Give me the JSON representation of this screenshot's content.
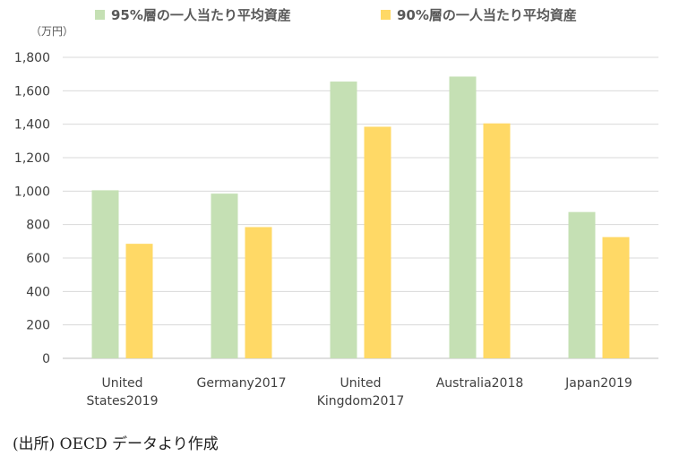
{
  "chart_data": {
    "type": "bar",
    "unit_label": "（万円）",
    "categories": [
      [
        "United",
        "States2019"
      ],
      [
        "Germany2017"
      ],
      [
        "United",
        "Kingdom2017"
      ],
      [
        "Australia2018"
      ],
      [
        "Japan2019"
      ]
    ],
    "series": [
      {
        "name": "95%層の一人当たり平均資産",
        "color": "#c5e0b4",
        "values": [
          1005,
          985,
          1655,
          1685,
          875
        ]
      },
      {
        "name": "90%層の一人当たり平均資産",
        "color": "#ffd966",
        "values": [
          685,
          785,
          1385,
          1405,
          725
        ]
      }
    ],
    "ylim": [
      0,
      1800
    ],
    "yticks": [
      "0",
      "200",
      "400",
      "600",
      "800",
      "1,000",
      "1,200",
      "1,400",
      "1,600",
      "1,800"
    ],
    "grid": true,
    "legend_position": "top"
  },
  "source_note": "(出所) OECD データより作成"
}
